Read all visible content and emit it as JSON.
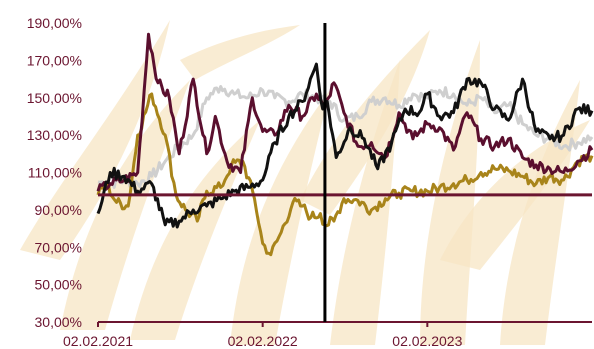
{
  "colors": {
    "series_gold": "#a8841a",
    "series_maroon": "#5a0f2e",
    "series_black": "#111111",
    "series_gray": "#cfcfcf",
    "reference_line": "#6b1530",
    "marker_line": "#000000",
    "axis": "#6b1530",
    "label_text": "#6b1530",
    "watermark": "#f7e6c4"
  },
  "chart_data": {
    "type": "line",
    "title": "",
    "xlabel": "",
    "ylabel": "",
    "ylim": [
      30,
      190
    ],
    "y_tick_values": [
      30,
      50,
      70,
      90,
      110,
      130,
      150,
      170,
      190
    ],
    "y_tick_labels": [
      "30,00%",
      "50,00%",
      "70,00%",
      "90,00%",
      "110,00%",
      "130,00%",
      "150,00%",
      "170,00%",
      "190,00%"
    ],
    "x_tick_labels": [
      "02.02.2021",
      "02.02.2022",
      "02.02.2023"
    ],
    "x_tick_dates": [
      "2021-02-02",
      "2022-02-02",
      "2023-02-02"
    ],
    "x_range": [
      "2021-02-02",
      "2024-02-02"
    ],
    "grid": false,
    "legend": "none",
    "reference_line_value": 98,
    "marker_date": "2022-06-20",
    "series": [
      {
        "color": "#a8841a",
        "x": [
          "2021-02-02",
          "2021-02-20",
          "2021-03-15",
          "2021-04-10",
          "2021-05-01",
          "2021-06-01",
          "2021-07-01",
          "2021-07-25",
          "2021-08-15",
          "2021-09-10",
          "2021-10-01",
          "2021-11-01",
          "2021-11-25",
          "2021-12-20",
          "2022-01-15",
          "2022-02-02",
          "2022-02-20",
          "2022-03-15",
          "2022-04-10",
          "2022-05-01",
          "2022-05-20",
          "2022-06-10",
          "2022-06-20",
          "2022-07-10",
          "2022-08-01",
          "2022-09-01",
          "2022-10-01",
          "2022-11-01",
          "2022-12-01",
          "2023-01-01",
          "2023-02-02",
          "2023-03-01",
          "2023-04-01",
          "2023-05-01",
          "2023-06-01",
          "2023-07-01",
          "2023-08-01",
          "2023-09-01",
          "2023-10-01",
          "2023-11-01",
          "2023-12-01",
          "2024-01-01",
          "2024-02-02"
        ],
        "values": [
          98,
          104,
          94,
          92,
          130,
          152,
          130,
          98,
          90,
          84,
          100,
          102,
          114,
          116,
          96,
          72,
          66,
          78,
          94,
          92,
          86,
          88,
          82,
          84,
          96,
          95,
          90,
          96,
          99,
          100,
          100,
          102,
          104,
          106,
          110,
          112,
          111,
          108,
          104,
          108,
          106,
          116,
          119
        ]
      },
      {
        "color": "#5a0f2e",
        "x": [
          "2021-02-02",
          "2021-03-01",
          "2021-04-01",
          "2021-05-01",
          "2021-05-25",
          "2021-06-15",
          "2021-07-10",
          "2021-08-01",
          "2021-09-01",
          "2021-10-01",
          "2021-10-20",
          "2021-11-15",
          "2021-12-15",
          "2022-01-10",
          "2022-02-02",
          "2022-03-01",
          "2022-04-01",
          "2022-05-01",
          "2022-06-01",
          "2022-06-20",
          "2022-07-10",
          "2022-08-01",
          "2022-09-01",
          "2022-10-01",
          "2022-11-01",
          "2022-12-01",
          "2023-01-01",
          "2023-02-02",
          "2023-03-01",
          "2023-04-01",
          "2023-05-01",
          "2023-06-01",
          "2023-07-01",
          "2023-08-01",
          "2023-09-01",
          "2023-10-01",
          "2023-11-01",
          "2023-12-01",
          "2024-01-01",
          "2024-02-02"
        ],
        "values": [
          100,
          104,
          106,
          110,
          184,
          158,
          150,
          120,
          160,
          120,
          140,
          116,
          110,
          150,
          132,
          130,
          146,
          140,
          152,
          144,
          158,
          142,
          124,
          126,
          118,
          142,
          128,
          136,
          134,
          122,
          142,
          128,
          124,
          128,
          118,
          114,
          112,
          110,
          116,
          122
        ]
      },
      {
        "color": "#111111",
        "x": [
          "2021-02-02",
          "2021-03-01",
          "2021-04-01",
          "2021-05-01",
          "2021-06-01",
          "2021-07-01",
          "2021-08-01",
          "2021-09-01",
          "2021-10-01",
          "2021-11-01",
          "2021-12-01",
          "2022-01-01",
          "2022-02-02",
          "2022-03-01",
          "2022-04-01",
          "2022-05-01",
          "2022-06-01",
          "2022-06-15",
          "2022-06-25",
          "2022-07-15",
          "2022-08-15",
          "2022-09-15",
          "2022-10-15",
          "2022-11-15",
          "2022-12-15",
          "2023-01-15",
          "2023-02-02",
          "2023-03-01",
          "2023-04-01",
          "2023-05-01",
          "2023-06-01",
          "2023-07-01",
          "2023-08-01",
          "2023-09-01",
          "2023-10-01",
          "2023-11-01",
          "2023-12-01",
          "2024-01-01",
          "2024-02-02"
        ],
        "values": [
          88,
          110,
          108,
          100,
          104,
          82,
          84,
          90,
          92,
          96,
          100,
          102,
          106,
          126,
          140,
          148,
          168,
          144,
          148,
          118,
          134,
          128,
          112,
          126,
          144,
          142,
          152,
          140,
          142,
          160,
          158,
          144,
          138,
          160,
          132,
          128,
          130,
          144,
          143
        ]
      },
      {
        "color": "#cfcfcf",
        "x": [
          "2021-02-02",
          "2021-03-01",
          "2021-04-01",
          "2021-05-01",
          "2021-06-01",
          "2021-07-01",
          "2021-08-01",
          "2021-09-01",
          "2021-10-01",
          "2021-11-01",
          "2021-12-01",
          "2022-01-01",
          "2022-02-02",
          "2022-03-01",
          "2022-04-01",
          "2022-05-01",
          "2022-06-01",
          "2022-07-01",
          "2022-08-01",
          "2022-09-01",
          "2022-10-01",
          "2022-11-01",
          "2022-12-01",
          "2023-01-01",
          "2023-02-02",
          "2023-03-01",
          "2023-04-01",
          "2023-05-01",
          "2023-06-01",
          "2023-07-01",
          "2023-08-01",
          "2023-09-01",
          "2023-10-01",
          "2023-11-01",
          "2023-12-01",
          "2024-01-01",
          "2024-02-02"
        ],
        "values": [
          105,
          104,
          106,
          104,
          108,
          116,
          124,
          130,
          150,
          156,
          152,
          150,
          154,
          150,
          148,
          152,
          150,
          148,
          138,
          140,
          148,
          150,
          146,
          152,
          150,
          154,
          152,
          146,
          150,
          142,
          146,
          136,
          130,
          128,
          124,
          126,
          129
        ]
      }
    ]
  }
}
